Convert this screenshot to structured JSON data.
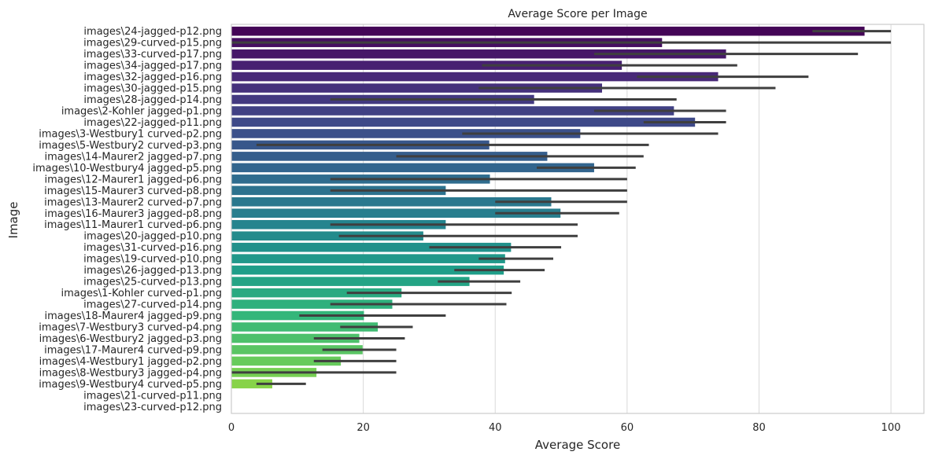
{
  "chart_data": {
    "type": "bar",
    "orientation": "horizontal",
    "title": "Average Score per Image",
    "xlabel": "Average Score",
    "ylabel": "Image",
    "xlim": [
      0,
      105
    ],
    "xticks": [
      0,
      20,
      40,
      60,
      80,
      100
    ],
    "grid": "vertical",
    "palette": "viridis",
    "categories": [
      "images\\24-jagged-p12.png",
      "images\\29-curved-p15.png",
      "images\\33-curved-p17.png",
      "images\\34-jagged-p17.png",
      "images\\32-jagged-p16.png",
      "images\\30-jagged-p15.png",
      "images\\28-jagged-p14.png",
      "images\\2-Kohler jagged-p1.png",
      "images\\22-jagged-p11.png",
      "images\\3-Westbury1 curved-p2.png",
      "images\\5-Westbury2 curved-p3.png",
      "images\\14-Maurer2 jagged-p7.png",
      "images\\10-Westbury4 jagged-p5.png",
      "images\\12-Maurer1 jagged-p6.png",
      "images\\15-Maurer3 curved-p8.png",
      "images\\13-Maurer2 curved-p7.png",
      "images\\16-Maurer3 jagged-p8.png",
      "images\\11-Maurer1 curved-p6.png",
      "images\\20-jagged-p10.png",
      "images\\31-curved-p16.png",
      "images\\19-curved-p10.png",
      "images\\26-jagged-p13.png",
      "images\\25-curved-p13.png",
      "images\\1-Kohler curved-p1.png",
      "images\\27-curved-p14.png",
      "images\\18-Maurer4 jagged-p9.png",
      "images\\7-Westbury3 curved-p4.png",
      "images\\6-Westbury2 jagged-p3.png",
      "images\\17-Maurer4 curved-p9.png",
      "images\\4-Westbury1 jagged-p2.png",
      "images\\8-Westbury3 jagged-p4.png",
      "images\\9-Westbury4 curved-p5.png",
      "images\\21-curved-p11.png",
      "images\\23-curved-p12.png"
    ],
    "values": [
      96,
      65.3,
      75,
      59.2,
      73.8,
      56.2,
      45.9,
      67.1,
      70.3,
      52.9,
      39.1,
      47.9,
      55,
      39.2,
      32.5,
      48.5,
      49.9,
      32.5,
      29.1,
      42.4,
      41.5,
      41.3,
      36.1,
      25.8,
      24.4,
      20.1,
      22.2,
      19.4,
      19.9,
      16.6,
      12.9,
      6.2,
      0,
      0
    ],
    "ci_low": [
      88.1,
      0,
      55,
      38,
      61.5,
      37.5,
      15,
      55,
      62.5,
      35,
      3.8,
      25,
      46.3,
      15,
      15,
      40,
      40,
      15,
      16.3,
      30,
      37.5,
      33.8,
      31.3,
      17.5,
      15,
      10.3,
      16.5,
      12.5,
      13.8,
      12.5,
      0,
      3.8,
      null,
      null
    ],
    "ci_high": [
      100,
      100,
      95,
      76.7,
      87.5,
      82.5,
      67.5,
      75,
      75,
      73.8,
      63.3,
      62.5,
      61.3,
      60,
      60,
      60,
      58.8,
      52.5,
      52.5,
      50,
      48.8,
      47.5,
      43.8,
      42.5,
      41.7,
      32.5,
      27.5,
      26.3,
      25,
      25,
      25,
      11.3,
      null,
      null
    ]
  }
}
